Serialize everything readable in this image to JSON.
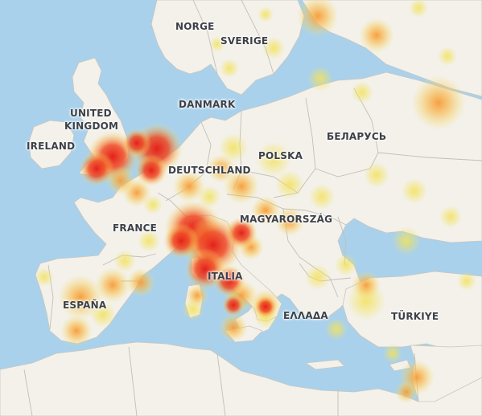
{
  "map": {
    "labels": {
      "norge": "NORGE",
      "sverige": "SVERIGE",
      "united_kingdom_1": "UNITED",
      "united_kingdom_2": "KINGDOM",
      "ireland": "IRELAND",
      "danmark": "DANMARK",
      "deutschland": "DEUTSCHLAND",
      "polska": "POLSKA",
      "belarus": "БЕЛАРУСЬ",
      "france": "FRANCE",
      "magyarorszag": "MAGYARORSZÁG",
      "italia": "ITALIA",
      "espana": "ESPAÑA",
      "ellada": "ΕΛΛΑΔΑ",
      "turkiye": "TÜRKIYE"
    },
    "colors": {
      "sea": "#a9d1ec",
      "land": "#f3f1ea",
      "heat_low": "#f5e66a",
      "heat_mid": "#f7a33a",
      "heat_high": "#e8231c"
    }
  }
}
